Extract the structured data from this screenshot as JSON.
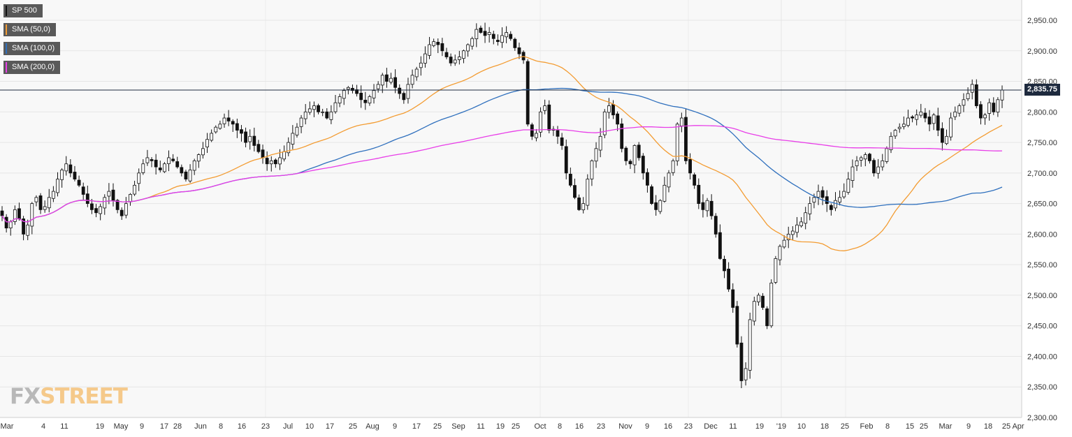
{
  "legend": [
    {
      "label": "SP 500",
      "color": "#111111"
    },
    {
      "label": "SMA (50,0)",
      "color": "#f39c32"
    },
    {
      "label": "SMA (100,0)",
      "color": "#2e6fbd"
    },
    {
      "label": "SMA (200,0)",
      "color": "#e83ee8"
    }
  ],
  "last_price_label": "2,835.75",
  "logo": {
    "fx": "FX",
    "street": "STREET"
  },
  "chart_data": {
    "type": "candlestick",
    "x_ticks": [
      "Mar",
      "4",
      "11",
      "19",
      "May",
      "9",
      "17",
      "28",
      "Jun",
      "8",
      "16",
      "23",
      "Jul",
      "10",
      "17",
      "25",
      "Aug",
      "9",
      "17",
      "25",
      "Sep",
      "11",
      "19",
      "25",
      "Oct",
      "8",
      "16",
      "23",
      "Nov",
      "9",
      "16",
      "23",
      "Dec",
      "11",
      "19",
      "'19",
      "10",
      "18",
      "25",
      "Feb",
      "8",
      "15",
      "25",
      "Mar",
      "9",
      "18",
      "25",
      "Apr"
    ],
    "y_ticks": [
      "2,950.00",
      "2,900.00",
      "2,850.00",
      "2,800.00",
      "2,750.00",
      "2,700.00",
      "2,650.00",
      "2,600.00",
      "2,550.00",
      "2,500.00",
      "2,450.00",
      "2,400.00",
      "2,350.00",
      "2,300.00"
    ],
    "ylim": [
      2300,
      2960
    ],
    "last_price": 2835.75,
    "closes": [
      2630,
      2610,
      2620,
      2640,
      2625,
      2600,
      2615,
      2650,
      2660,
      2640,
      2645,
      2660,
      2670,
      2690,
      2705,
      2715,
      2700,
      2690,
      2680,
      2665,
      2650,
      2640,
      2635,
      2645,
      2660,
      2670,
      2655,
      2640,
      2630,
      2650,
      2665,
      2680,
      2700,
      2715,
      2725,
      2720,
      2710,
      2705,
      2715,
      2725,
      2720,
      2710,
      2700,
      2690,
      2705,
      2720,
      2730,
      2740,
      2755,
      2765,
      2775,
      2780,
      2790,
      2785,
      2780,
      2770,
      2765,
      2750,
      2760,
      2745,
      2735,
      2725,
      2715,
      2720,
      2715,
      2725,
      2735,
      2750,
      2765,
      2775,
      2790,
      2800,
      2805,
      2810,
      2800,
      2800,
      2790,
      2800,
      2815,
      2825,
      2835,
      2840,
      2835,
      2830,
      2820,
      2815,
      2825,
      2835,
      2845,
      2860,
      2850,
      2855,
      2840,
      2830,
      2820,
      2845,
      2860,
      2870,
      2880,
      2895,
      2910,
      2915,
      2910,
      2900,
      2890,
      2880,
      2885,
      2890,
      2900,
      2910,
      2920,
      2935,
      2930,
      2925,
      2930,
      2920,
      2915,
      2925,
      2930,
      2920,
      2905,
      2895,
      2885,
      2780,
      2760,
      2765,
      2800,
      2810,
      2770,
      2770,
      2760,
      2745,
      2700,
      2680,
      2660,
      2640,
      2650,
      2690,
      2720,
      2740,
      2760,
      2800,
      2810,
      2795,
      2780,
      2740,
      2720,
      2715,
      2745,
      2725,
      2700,
      2680,
      2650,
      2640,
      2655,
      2680,
      2700,
      2720,
      2780,
      2790,
      2720,
      2700,
      2680,
      2650,
      2640,
      2655,
      2630,
      2600,
      2560,
      2540,
      2510,
      2480,
      2420,
      2360,
      2380,
      2460,
      2490,
      2500,
      2480,
      2450,
      2520,
      2560,
      2580,
      2590,
      2600,
      2605,
      2615,
      2620,
      2635,
      2650,
      2660,
      2670,
      2660,
      2650,
      2640,
      2655,
      2660,
      2670,
      2690,
      2710,
      2720,
      2725,
      2730,
      2720,
      2700,
      2710,
      2720,
      2740,
      2760,
      2770,
      2775,
      2780,
      2790,
      2790,
      2795,
      2800,
      2790,
      2780,
      2795,
      2770,
      2750,
      2760,
      2790,
      2800,
      2810,
      2820,
      2830,
      2845,
      2810,
      2790,
      2795,
      2815,
      2800,
      2820,
      2835.75
    ]
  }
}
